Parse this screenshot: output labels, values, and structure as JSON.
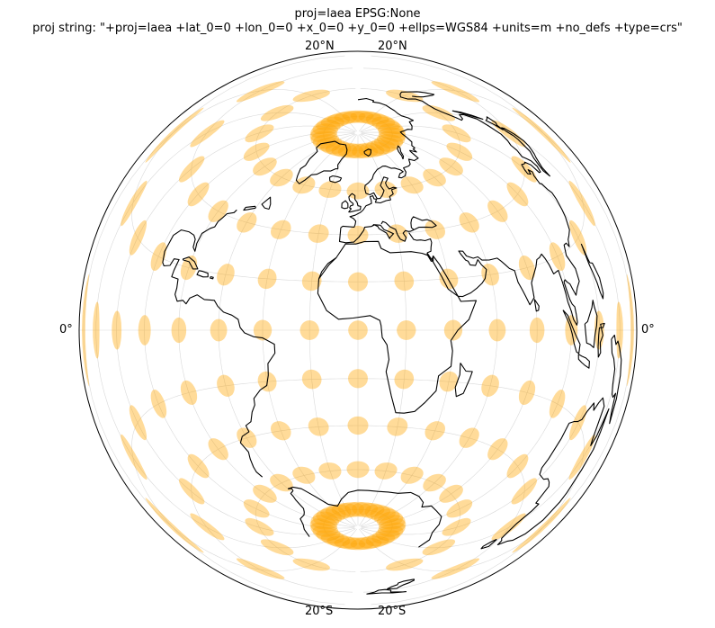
{
  "figure": {
    "title_line1": "proj=laea EPSG:None",
    "title_line2": "proj string: \"+proj=laea +lat_0=0 +lon_0=0 +x_0=0 +y_0=0 +ellps=WGS84 +units=m +no_defs +type=crs\""
  },
  "ticks": {
    "top_left": "20°N",
    "top_right": "20°N",
    "bottom_left": "20°S",
    "bottom_right": "20°S",
    "left": "0°",
    "right": "0°"
  },
  "map_data": {
    "projection": "laea",
    "lat_0": 0,
    "lon_0": 0,
    "gridlines": true,
    "coastlines": true,
    "indicatrix_color": "#ffa500",
    "indicatrix_opacity": 0.4,
    "coastline_color": "#000000",
    "gridline_color": "#d9d9d9"
  }
}
